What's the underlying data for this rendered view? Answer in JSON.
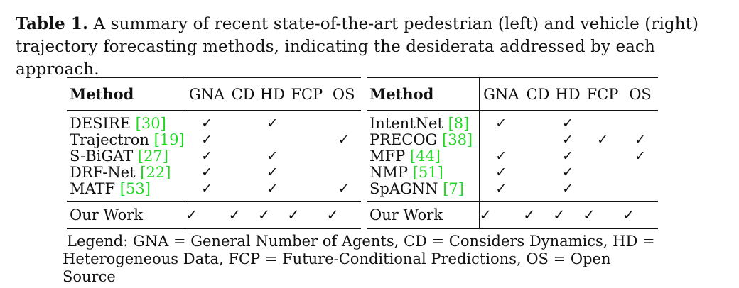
{
  "caption": {
    "label": "Table 1.",
    "text": " A summary of recent state-of-the-art pedestrian (left) and vehicle (right) trajectory forecasting methods, indicating the desiderata addressed by each approach."
  },
  "columns": [
    "Method",
    "GNA",
    "CD",
    "HD",
    "FCP",
    "OS"
  ],
  "check_symbol": "✓",
  "left_table": {
    "rows": [
      {
        "name": "DESIRE ",
        "ref": "[30]",
        "marks": [
          true,
          false,
          true,
          false,
          false
        ]
      },
      {
        "name": "Trajectron ",
        "ref": "[19]",
        "marks": [
          true,
          false,
          false,
          false,
          true
        ]
      },
      {
        "name": "S-BiGAT ",
        "ref": "[27]",
        "marks": [
          true,
          false,
          true,
          false,
          false
        ]
      },
      {
        "name": "DRF-Net ",
        "ref": "[22]",
        "marks": [
          true,
          false,
          true,
          false,
          false
        ]
      },
      {
        "name": "MATF ",
        "ref": "[53]",
        "marks": [
          true,
          false,
          true,
          false,
          true
        ]
      }
    ],
    "ours": {
      "name": "Our Work",
      "marks": [
        true,
        true,
        true,
        true,
        true
      ]
    }
  },
  "right_table": {
    "rows": [
      {
        "name": "IntentNet ",
        "ref": "[8]",
        "marks": [
          true,
          false,
          true,
          false,
          false
        ]
      },
      {
        "name": "PRECOG ",
        "ref": "[38]",
        "marks": [
          false,
          false,
          true,
          true,
          true
        ]
      },
      {
        "name": "MFP ",
        "ref": "[44]",
        "marks": [
          true,
          false,
          true,
          false,
          true
        ]
      },
      {
        "name": "NMP ",
        "ref": "[51]",
        "marks": [
          true,
          false,
          true,
          false,
          false
        ]
      },
      {
        "name": "SpAGNN ",
        "ref": "[7]",
        "marks": [
          true,
          false,
          true,
          false,
          false
        ]
      }
    ],
    "ours": {
      "name": "Our Work",
      "marks": [
        true,
        true,
        true,
        true,
        true
      ]
    }
  },
  "legend": {
    "line1": "Legend: GNA = General Number of Agents, CD = Considers Dynamics, HD =",
    "line2": "Heterogeneous Data, FCP = Future-Conditional Predictions, OS = Open Source"
  }
}
